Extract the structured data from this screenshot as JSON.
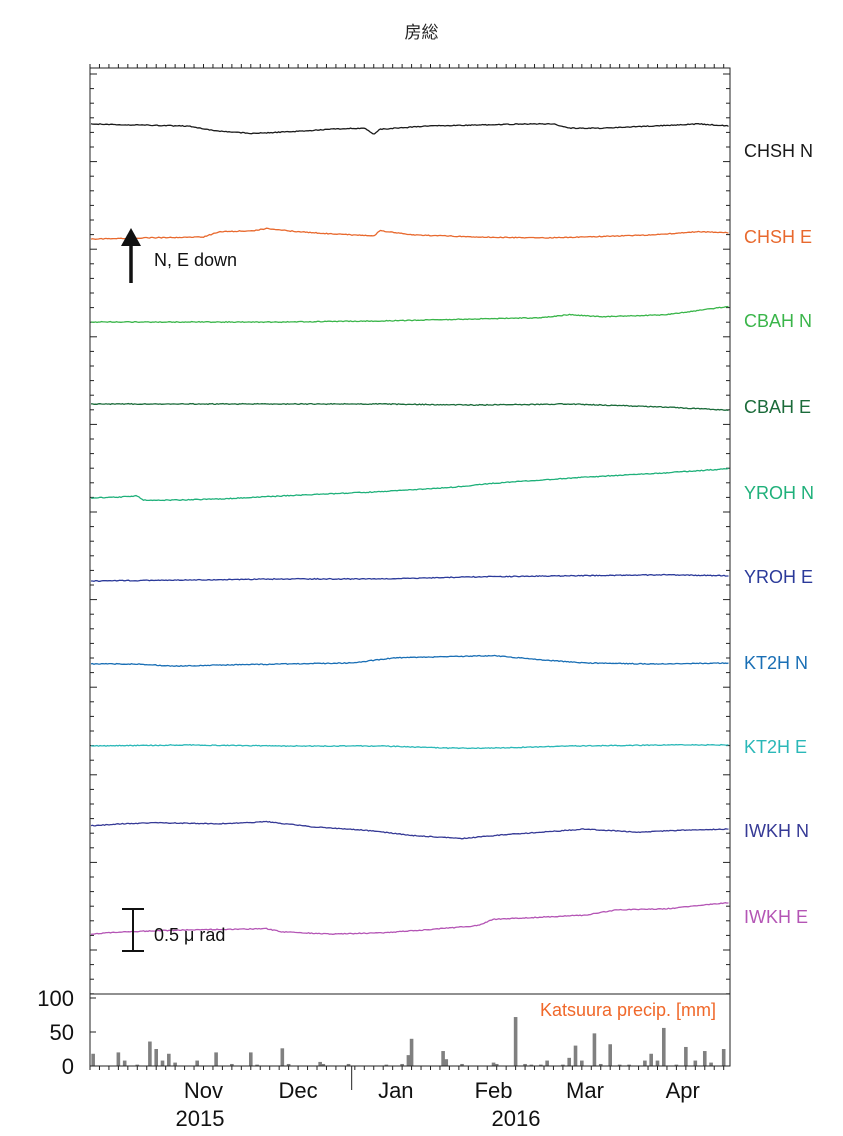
{
  "chart_data": {
    "type": "line",
    "title": "房総",
    "x_range": [
      "2015-10-10",
      "2016-04-30"
    ],
    "month_ticks": [
      "Nov",
      "Dec",
      "Jan",
      "Feb",
      "Mar",
      "Apr"
    ],
    "year_labels": [
      "2015",
      "2016"
    ],
    "scale_bar": {
      "value": 0.5,
      "label": "0.5 μ rad"
    },
    "direction_arrow": {
      "label": "N, E down"
    },
    "series": [
      {
        "name": "CHSH N",
        "color": "#1a1a1a",
        "points": [
          [
            "2015-10-10",
            1.05
          ],
          [
            "2015-10-25",
            1.0
          ],
          [
            "2015-11-10",
            0.95
          ],
          [
            "2015-11-20",
            0.7
          ],
          [
            "2015-12-01",
            0.6
          ],
          [
            "2015-12-15",
            0.7
          ],
          [
            "2015-12-25",
            0.8
          ],
          [
            "2016-01-05",
            0.85
          ],
          [
            "2016-01-08",
            0.55
          ],
          [
            "2016-01-10",
            0.8
          ],
          [
            "2016-01-25",
            0.95
          ],
          [
            "2016-02-10",
            1.0
          ],
          [
            "2016-02-25",
            1.05
          ],
          [
            "2016-03-05",
            1.05
          ],
          [
            "2016-03-10",
            0.85
          ],
          [
            "2016-03-20",
            0.85
          ],
          [
            "2016-04-05",
            0.95
          ],
          [
            "2016-04-20",
            1.05
          ],
          [
            "2016-04-30",
            0.95
          ]
        ]
      },
      {
        "name": "CHSH E",
        "color": "#e8692e",
        "points": [
          [
            "2015-10-10",
            -0.05
          ],
          [
            "2015-10-25",
            0.0
          ],
          [
            "2015-11-15",
            0.05
          ],
          [
            "2015-11-20",
            0.3
          ],
          [
            "2015-12-01",
            0.35
          ],
          [
            "2015-12-05",
            0.45
          ],
          [
            "2015-12-15",
            0.3
          ],
          [
            "2015-12-25",
            0.2
          ],
          [
            "2016-01-08",
            0.1
          ],
          [
            "2016-01-10",
            0.35
          ],
          [
            "2016-01-20",
            0.15
          ],
          [
            "2016-02-10",
            0.05
          ],
          [
            "2016-03-01",
            0.0
          ],
          [
            "2016-03-15",
            0.05
          ],
          [
            "2016-04-05",
            0.15
          ],
          [
            "2016-04-20",
            0.3
          ],
          [
            "2016-04-30",
            0.25
          ]
        ]
      },
      {
        "name": "CBAH N",
        "color": "#3ab54a",
        "points": [
          [
            "2015-10-10",
            0.0
          ],
          [
            "2015-11-10",
            0.0
          ],
          [
            "2015-12-10",
            0.0
          ],
          [
            "2016-01-10",
            0.05
          ],
          [
            "2016-02-10",
            0.15
          ],
          [
            "2016-03-01",
            0.2
          ],
          [
            "2016-03-10",
            0.35
          ],
          [
            "2016-03-20",
            0.25
          ],
          [
            "2016-04-10",
            0.35
          ],
          [
            "2016-04-20",
            0.55
          ],
          [
            "2016-04-30",
            0.75
          ]
        ]
      },
      {
        "name": "CBAH E",
        "color": "#1b6b3a",
        "points": [
          [
            "2015-10-10",
            0.0
          ],
          [
            "2015-11-10",
            0.0
          ],
          [
            "2015-12-10",
            0.0
          ],
          [
            "2016-01-10",
            0.0
          ],
          [
            "2016-02-10",
            -0.05
          ],
          [
            "2016-03-10",
            0.0
          ],
          [
            "2016-04-10",
            -0.15
          ],
          [
            "2016-04-30",
            -0.3
          ]
        ]
      },
      {
        "name": "YROH N",
        "color": "#1fb07a",
        "points": [
          [
            "2015-10-10",
            0.0
          ],
          [
            "2015-10-20",
            0.05
          ],
          [
            "2015-10-25",
            0.1
          ],
          [
            "2015-10-27",
            -0.1
          ],
          [
            "2015-11-05",
            -0.1
          ],
          [
            "2015-11-20",
            -0.05
          ],
          [
            "2015-12-10",
            0.1
          ],
          [
            "2016-01-10",
            0.3
          ],
          [
            "2016-02-01",
            0.5
          ],
          [
            "2016-02-15",
            0.7
          ],
          [
            "2016-03-10",
            0.95
          ],
          [
            "2016-04-10",
            1.2
          ],
          [
            "2016-04-30",
            1.4
          ]
        ]
      },
      {
        "name": "YROH E",
        "color": "#2b3a9a",
        "points": [
          [
            "2015-10-10",
            -0.05
          ],
          [
            "2015-11-10",
            0.0
          ],
          [
            "2015-12-10",
            0.05
          ],
          [
            "2016-01-10",
            0.05
          ],
          [
            "2016-02-10",
            0.15
          ],
          [
            "2016-03-10",
            0.2
          ],
          [
            "2016-04-10",
            0.25
          ],
          [
            "2016-04-30",
            0.2
          ]
        ]
      },
      {
        "name": "KT2H N",
        "color": "#1a6fb5",
        "points": [
          [
            "2015-10-10",
            0.0
          ],
          [
            "2015-10-25",
            0.0
          ],
          [
            "2015-11-05",
            -0.1
          ],
          [
            "2015-11-20",
            -0.05
          ],
          [
            "2015-12-10",
            0.0
          ],
          [
            "2016-01-01",
            0.05
          ],
          [
            "2016-01-15",
            0.3
          ],
          [
            "2016-02-01",
            0.35
          ],
          [
            "2016-02-15",
            0.4
          ],
          [
            "2016-03-01",
            0.2
          ],
          [
            "2016-03-15",
            0.05
          ],
          [
            "2016-04-05",
            0.0
          ],
          [
            "2016-04-30",
            0.05
          ]
        ]
      },
      {
        "name": "KT2H E",
        "color": "#2bb8b8",
        "points": [
          [
            "2015-10-10",
            0.0
          ],
          [
            "2015-11-10",
            0.05
          ],
          [
            "2015-12-10",
            0.0
          ],
          [
            "2016-01-10",
            0.0
          ],
          [
            "2016-02-01",
            -0.1
          ],
          [
            "2016-02-15",
            -0.1
          ],
          [
            "2016-03-10",
            0.0
          ],
          [
            "2016-04-10",
            0.05
          ],
          [
            "2016-04-30",
            0.05
          ]
        ]
      },
      {
        "name": "IWKH N",
        "color": "#363a96",
        "points": [
          [
            "2015-10-10",
            0.1
          ],
          [
            "2015-10-20",
            0.2
          ],
          [
            "2015-11-01",
            0.25
          ],
          [
            "2015-11-20",
            0.2
          ],
          [
            "2015-12-05",
            0.3
          ],
          [
            "2015-12-20",
            0.05
          ],
          [
            "2016-01-05",
            -0.1
          ],
          [
            "2016-01-20",
            -0.35
          ],
          [
            "2016-02-05",
            -0.5
          ],
          [
            "2016-02-20",
            -0.3
          ],
          [
            "2016-03-01",
            -0.2
          ],
          [
            "2016-03-15",
            -0.05
          ],
          [
            "2016-04-01",
            -0.2
          ],
          [
            "2016-04-15",
            -0.1
          ],
          [
            "2016-04-30",
            -0.05
          ]
        ]
      },
      {
        "name": "IWKH E",
        "color": "#b455b5",
        "points": [
          [
            "2015-10-10",
            0.0
          ],
          [
            "2015-10-20",
            0.1
          ],
          [
            "2015-11-10",
            0.2
          ],
          [
            "2015-12-05",
            0.25
          ],
          [
            "2015-12-10",
            0.1
          ],
          [
            "2015-12-25",
            0.0
          ],
          [
            "2016-01-10",
            0.05
          ],
          [
            "2016-01-25",
            0.2
          ],
          [
            "2016-02-10",
            0.4
          ],
          [
            "2016-02-15",
            0.7
          ],
          [
            "2016-03-01",
            0.8
          ],
          [
            "2016-03-15",
            0.9
          ],
          [
            "2016-03-25",
            1.15
          ],
          [
            "2016-04-10",
            1.2
          ],
          [
            "2016-04-20",
            1.35
          ],
          [
            "2016-04-30",
            1.5
          ]
        ]
      }
    ],
    "precip": {
      "label": "Katsuura precip. [mm]",
      "color": "#808080",
      "label_color": "#f0682a",
      "ylim": [
        0,
        100
      ],
      "yticks": [
        "0",
        "50",
        "100"
      ],
      "bars": [
        [
          "2015-10-11",
          18
        ],
        [
          "2015-10-19",
          20
        ],
        [
          "2015-10-21",
          8
        ],
        [
          "2015-10-25",
          2
        ],
        [
          "2015-10-29",
          36
        ],
        [
          "2015-10-31",
          25
        ],
        [
          "2015-11-02",
          8
        ],
        [
          "2015-11-04",
          18
        ],
        [
          "2015-11-06",
          5
        ],
        [
          "2015-11-13",
          8
        ],
        [
          "2015-11-19",
          20
        ],
        [
          "2015-11-24",
          3
        ],
        [
          "2015-11-30",
          20
        ],
        [
          "2015-12-02",
          2
        ],
        [
          "2015-12-10",
          26
        ],
        [
          "2015-12-12",
          3
        ],
        [
          "2015-12-22",
          6
        ],
        [
          "2015-12-23",
          3
        ],
        [
          "2015-12-31",
          3
        ],
        [
          "2016-01-12",
          2
        ],
        [
          "2016-01-17",
          3
        ],
        [
          "2016-01-19",
          16
        ],
        [
          "2016-01-20",
          40
        ],
        [
          "2016-01-30",
          22
        ],
        [
          "2016-01-31",
          10
        ],
        [
          "2016-02-05",
          3
        ],
        [
          "2016-02-15",
          5
        ],
        [
          "2016-02-16",
          3
        ],
        [
          "2016-02-22",
          72
        ],
        [
          "2016-02-25",
          3
        ],
        [
          "2016-02-27",
          2
        ],
        [
          "2016-03-01",
          2
        ],
        [
          "2016-03-03",
          8
        ],
        [
          "2016-03-08",
          2
        ],
        [
          "2016-03-10",
          12
        ],
        [
          "2016-03-12",
          30
        ],
        [
          "2016-03-14",
          8
        ],
        [
          "2016-03-18",
          48
        ],
        [
          "2016-03-20",
          3
        ],
        [
          "2016-03-23",
          32
        ],
        [
          "2016-03-26",
          2
        ],
        [
          "2016-03-29",
          2
        ],
        [
          "2016-04-03",
          8
        ],
        [
          "2016-04-05",
          18
        ],
        [
          "2016-04-07",
          8
        ],
        [
          "2016-04-09",
          56
        ],
        [
          "2016-04-13",
          2
        ],
        [
          "2016-04-16",
          28
        ],
        [
          "2016-04-19",
          8
        ],
        [
          "2016-04-22",
          22
        ],
        [
          "2016-04-24",
          5
        ],
        [
          "2016-04-28",
          25
        ]
      ]
    }
  }
}
